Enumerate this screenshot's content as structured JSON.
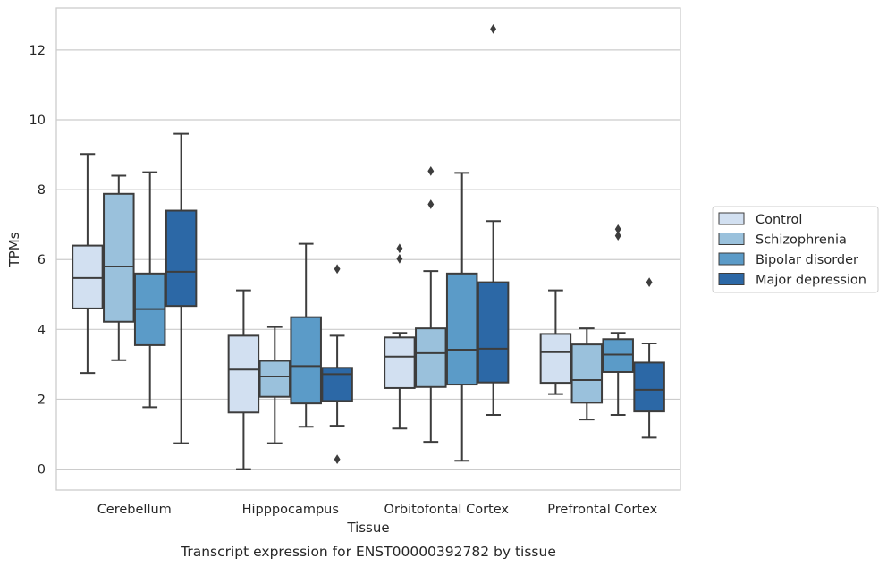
{
  "chart_data": {
    "type": "box",
    "xlabel": "Tissue",
    "ylabel": "TPMs",
    "caption": "Transcript expression for ENST00000392782 by tissue",
    "ylim": [
      -0.6,
      13.2
    ],
    "yticks": [
      0,
      2,
      4,
      6,
      8,
      10,
      12
    ],
    "grid": true,
    "legend_position": "right",
    "categories": [
      "Cerebellum",
      "Hipppocampus",
      "Orbitofontal Cortex",
      "Prefrontal Cortex"
    ],
    "series": [
      {
        "name": "Control",
        "color": "#d2e0f1",
        "boxes": [
          {
            "whislo": 2.75,
            "q1": 4.6,
            "med": 5.47,
            "q3": 6.4,
            "whishi": 9.02,
            "fliers": []
          },
          {
            "whislo": 0.0,
            "q1": 1.62,
            "med": 2.85,
            "q3": 3.82,
            "whishi": 5.12,
            "fliers": []
          },
          {
            "whislo": 1.16,
            "q1": 2.32,
            "med": 3.22,
            "q3": 3.77,
            "whishi": 3.9,
            "fliers": [
              6.02,
              6.32
            ]
          },
          {
            "whislo": 2.15,
            "q1": 2.47,
            "med": 3.35,
            "q3": 3.87,
            "whishi": 5.12,
            "fliers": []
          }
        ]
      },
      {
        "name": "Schizophrenia",
        "color": "#9ac1dc",
        "boxes": [
          {
            "whislo": 3.12,
            "q1": 4.22,
            "med": 5.8,
            "q3": 7.88,
            "whishi": 8.4,
            "fliers": []
          },
          {
            "whislo": 0.74,
            "q1": 2.07,
            "med": 2.65,
            "q3": 3.1,
            "whishi": 4.07,
            "fliers": []
          },
          {
            "whislo": 0.78,
            "q1": 2.35,
            "med": 3.32,
            "q3": 4.03,
            "whishi": 5.67,
            "fliers": [
              7.58,
              8.53
            ]
          },
          {
            "whislo": 1.42,
            "q1": 1.9,
            "med": 2.55,
            "q3": 3.57,
            "whishi": 4.03,
            "fliers": []
          }
        ]
      },
      {
        "name": "Bipolar disorder",
        "color": "#5b9bc8",
        "boxes": [
          {
            "whislo": 1.77,
            "q1": 3.55,
            "med": 4.58,
            "q3": 5.6,
            "whishi": 8.5,
            "fliers": []
          },
          {
            "whislo": 1.21,
            "q1": 1.88,
            "med": 2.95,
            "q3": 4.35,
            "whishi": 6.45,
            "fliers": []
          },
          {
            "whislo": 0.24,
            "q1": 2.42,
            "med": 3.42,
            "q3": 5.6,
            "whishi": 8.48,
            "fliers": []
          },
          {
            "whislo": 1.55,
            "q1": 2.78,
            "med": 3.28,
            "q3": 3.72,
            "whishi": 3.9,
            "fliers": [
              6.68,
              6.87
            ]
          }
        ]
      },
      {
        "name": "Major depression",
        "color": "#2c68a6",
        "boxes": [
          {
            "whislo": 0.74,
            "q1": 4.67,
            "med": 5.65,
            "q3": 7.4,
            "whishi": 9.6,
            "fliers": []
          },
          {
            "whislo": 1.24,
            "q1": 1.95,
            "med": 2.72,
            "q3": 2.9,
            "whishi": 3.82,
            "fliers": [
              0.28,
              5.73
            ]
          },
          {
            "whislo": 1.55,
            "q1": 2.48,
            "med": 3.45,
            "q3": 5.35,
            "whishi": 7.1,
            "fliers": [
              12.6
            ]
          },
          {
            "whislo": 0.9,
            "q1": 1.65,
            "med": 2.27,
            "q3": 3.05,
            "whishi": 3.6,
            "fliers": [
              5.35
            ]
          }
        ]
      }
    ]
  }
}
